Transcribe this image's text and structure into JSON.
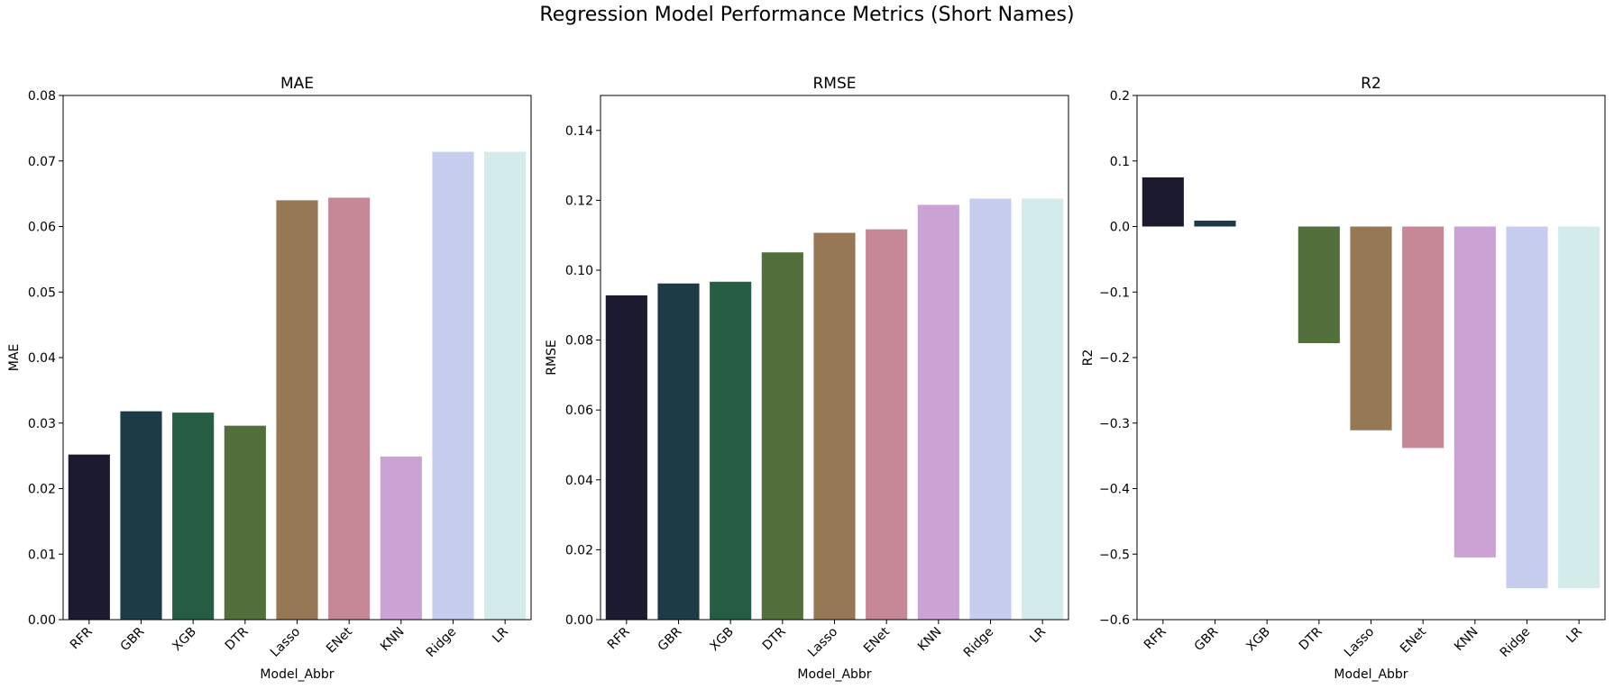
{
  "figure": {
    "title": "Regression Model Performance Metrics (Short Names)"
  },
  "chart_data": [
    {
      "type": "bar",
      "title": "MAE",
      "xlabel": "Model_Abbr",
      "ylabel": "MAE",
      "categories": [
        "RFR",
        "GBR",
        "XGB",
        "DTR",
        "Lasso",
        "ENet",
        "KNN",
        "Ridge",
        "LR"
      ],
      "values": [
        0.0252,
        0.0318,
        0.0316,
        0.0296,
        0.064,
        0.0644,
        0.0249,
        0.0714,
        0.0714
      ],
      "ylim": [
        0,
        0.08
      ],
      "yticks": [
        0.0,
        0.01,
        0.02,
        0.03,
        0.04,
        0.05,
        0.06,
        0.07,
        0.08
      ],
      "ytick_labels": [
        "0.00",
        "0.01",
        "0.02",
        "0.03",
        "0.04",
        "0.05",
        "0.06",
        "0.07",
        "0.08"
      ],
      "colors": [
        "#1c1a2e",
        "#1d3b47",
        "#255e45",
        "#52703c",
        "#977855",
        "#c68896",
        "#cba2d4",
        "#c7cdee",
        "#d4ebeb"
      ],
      "grid": false,
      "legend": false
    },
    {
      "type": "bar",
      "title": "RMSE",
      "xlabel": "Model_Abbr",
      "ylabel": "RMSE",
      "categories": [
        "RFR",
        "GBR",
        "XGB",
        "DTR",
        "Lasso",
        "ENet",
        "KNN",
        "Ridge",
        "LR"
      ],
      "values": [
        0.0928,
        0.0962,
        0.0967,
        0.1051,
        0.1107,
        0.1117,
        0.1187,
        0.1205,
        0.1205
      ],
      "ylim": [
        0,
        0.15
      ],
      "yticks": [
        0.0,
        0.02,
        0.04,
        0.06,
        0.08,
        0.1,
        0.12,
        0.14
      ],
      "ytick_labels": [
        "0.00",
        "0.02",
        "0.04",
        "0.06",
        "0.08",
        "0.10",
        "0.12",
        "0.14"
      ],
      "colors": [
        "#1c1a2e",
        "#1d3b47",
        "#255e45",
        "#52703c",
        "#977855",
        "#c68896",
        "#cba2d4",
        "#c7cdee",
        "#d4ebeb"
      ],
      "grid": false,
      "legend": false
    },
    {
      "type": "bar",
      "title": "R2",
      "xlabel": "Model_Abbr",
      "ylabel": "R2",
      "categories": [
        "RFR",
        "GBR",
        "XGB",
        "DTR",
        "Lasso",
        "ENet",
        "KNN",
        "Ridge",
        "LR"
      ],
      "values": [
        0.075,
        0.009,
        0.0,
        -0.178,
        -0.311,
        -0.338,
        -0.505,
        -0.552,
        -0.552
      ],
      "ylim": [
        -0.6,
        0.2
      ],
      "yticks": [
        -0.6,
        -0.5,
        -0.4,
        -0.3,
        -0.2,
        -0.1,
        0.0,
        0.1,
        0.2
      ],
      "ytick_labels": [
        "−0.6",
        "−0.5",
        "−0.4",
        "−0.3",
        "−0.2",
        "−0.1",
        "0.0",
        "0.1",
        "0.2"
      ],
      "colors": [
        "#1c1a2e",
        "#1d3b47",
        "#255e45",
        "#52703c",
        "#977855",
        "#c68896",
        "#cba2d4",
        "#c7cdee",
        "#d4ebeb"
      ],
      "grid": false,
      "legend": false
    }
  ]
}
